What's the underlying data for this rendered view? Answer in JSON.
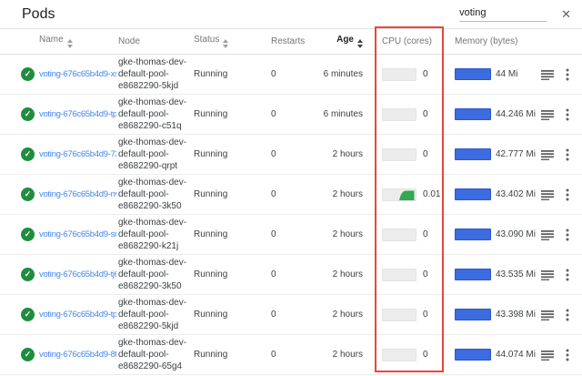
{
  "page": {
    "title": "Pods"
  },
  "search": {
    "value": "voting"
  },
  "icons": {
    "status_ok": "check-circle",
    "sort": "caret-up-down",
    "container_logs": "log-lines",
    "row_menu": "kebab-vertical",
    "clear_search": "✕"
  },
  "colors": {
    "link_blue": "#4285f4",
    "status_ok_green": "#1e8e3e",
    "memory_bar_blue": "#3d6be0",
    "cpu_chart_green": "#34a853",
    "highlight_red": "#e8473b"
  },
  "annotation": {
    "shape": "rectangle",
    "target_column": "CPU (cores)"
  },
  "table": {
    "columns": [
      {
        "label": "Name",
        "sort_icon": true,
        "sort_active": false
      },
      {
        "label": "Node",
        "sort_icon": false,
        "sort_active": false
      },
      {
        "label": "Status",
        "sort_icon": true,
        "sort_active": false
      },
      {
        "label": "Restarts",
        "sort_icon": false,
        "sort_active": false
      },
      {
        "label": "Age",
        "sort_icon": true,
        "sort_active": true
      },
      {
        "label": "CPU (cores)",
        "sort_icon": false,
        "sort_active": false
      },
      {
        "label": "Memory (bytes)",
        "sort_icon": false,
        "sort_active": false
      }
    ],
    "rows": [
      {
        "name": "voting-676c65b4d9-xs-",
        "node_lines": [
          "gke-thomas-dev-",
          "default-pool-",
          "e8682290-5kjd"
        ],
        "status": "Running",
        "restarts": "0",
        "age": "6 minutes",
        "cpu": "0",
        "cpu_has_chart": false,
        "memory": "44 Mi"
      },
      {
        "name": "voting-676c65b4d9-tpr",
        "node_lines": [
          "gke-thomas-dev-",
          "default-pool-",
          "e8682290-c51q"
        ],
        "status": "Running",
        "restarts": "0",
        "age": "6 minutes",
        "cpu": "0",
        "cpu_has_chart": false,
        "memory": "44.246 Mi"
      },
      {
        "name": "voting-676c65b4d9-72",
        "node_lines": [
          "gke-thomas-dev-",
          "default-pool-",
          "e8682290-qrpt"
        ],
        "status": "Running",
        "restarts": "0",
        "age": "2 hours",
        "cpu": "0",
        "cpu_has_chart": false,
        "memory": "42.777 Mi"
      },
      {
        "name": "voting-676c65b4d9-nv",
        "node_lines": [
          "gke-thomas-dev-",
          "default-pool-",
          "e8682290-3k50"
        ],
        "status": "Running",
        "restarts": "0",
        "age": "2 hours",
        "cpu": "0.01",
        "cpu_has_chart": true,
        "memory": "43.402 Mi"
      },
      {
        "name": "voting-676c65b4d9-srl",
        "node_lines": [
          "gke-thomas-dev-",
          "default-pool-",
          "e8682290-k21j"
        ],
        "status": "Running",
        "restarts": "0",
        "age": "2 hours",
        "cpu": "0",
        "cpu_has_chart": false,
        "memory": "43.090 Mi"
      },
      {
        "name": "voting-676c65b4d9-tj6",
        "node_lines": [
          "gke-thomas-dev-",
          "default-pool-",
          "e8682290-3k50"
        ],
        "status": "Running",
        "restarts": "0",
        "age": "2 hours",
        "cpu": "0",
        "cpu_has_chart": false,
        "memory": "43.535 Mi"
      },
      {
        "name": "voting-676c65b4d9-tpj",
        "node_lines": [
          "gke-thomas-dev-",
          "default-pool-",
          "e8682290-5kjd"
        ],
        "status": "Running",
        "restarts": "0",
        "age": "2 hours",
        "cpu": "0",
        "cpu_has_chart": false,
        "memory": "43.398 Mi"
      },
      {
        "name": "voting-676c65b4d9-8fl",
        "node_lines": [
          "gke-thomas-dev-",
          "default-pool-",
          "e8682290-65g4"
        ],
        "status": "Running",
        "restarts": "0",
        "age": "2 hours",
        "cpu": "0",
        "cpu_has_chart": false,
        "memory": "44.074 Mi"
      }
    ]
  }
}
